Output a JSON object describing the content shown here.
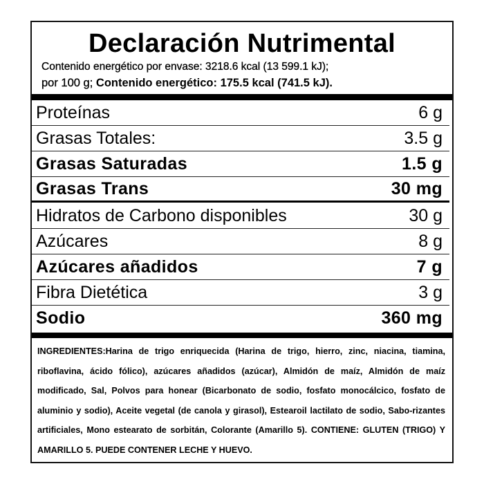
{
  "title": "Declaración Nutrimental",
  "energy": {
    "line1": "Contenido energético por envase: 3218.6 kcal (13 599.1 kJ);",
    "line2_prefix": "por 100 g;",
    "line2_bold": "Contenido energético: 175.5 kcal (741.5 kJ)."
  },
  "nutrients": [
    {
      "name": "Proteínas",
      "value": "6 g",
      "bold": false
    },
    {
      "name": "Grasas Totales:",
      "value": "3.5 g",
      "bold": false
    },
    {
      "name": "Grasas Saturadas",
      "value": "1.5 g",
      "bold": true
    },
    {
      "name": "Grasas Trans",
      "value": "30 mg",
      "bold": true
    },
    {
      "name": "Hidratos de Carbono disponibles",
      "value": "30 g",
      "bold": false
    },
    {
      "name": "Azúcares",
      "value": "8 g",
      "bold": false
    },
    {
      "name": "Azúcares añadidos",
      "value": "7 g",
      "bold": true
    },
    {
      "name": "Fibra Dietética",
      "value": "3 g",
      "bold": false
    },
    {
      "name": "Sodio",
      "value": "360 mg",
      "bold": true
    }
  ],
  "ingredients": "INGREDIENTES:Harina de trigo enriquecida (Harina de trigo, hierro, zinc, niacina, tiamina, riboflavina, ácido fólico), azúcares añadidos (azúcar), Almidón de maíz, Almidón de maíz modificado, Sal, Polvos para honear (Bicarbonato de sodio, fosfato monocálcico, fosfato de aluminio y sodio), Aceite vegetal (de canola y girasol), Estearoil lactilato de sodio, Sabo-rizantes artificiales, Mono estearato de sorbitán, Colorante (Amarillo 5). CONTIENE: GLUTEN (TRIGO) Y AMARILLO 5. PUEDE CONTENER LECHE Y HUEVO."
}
